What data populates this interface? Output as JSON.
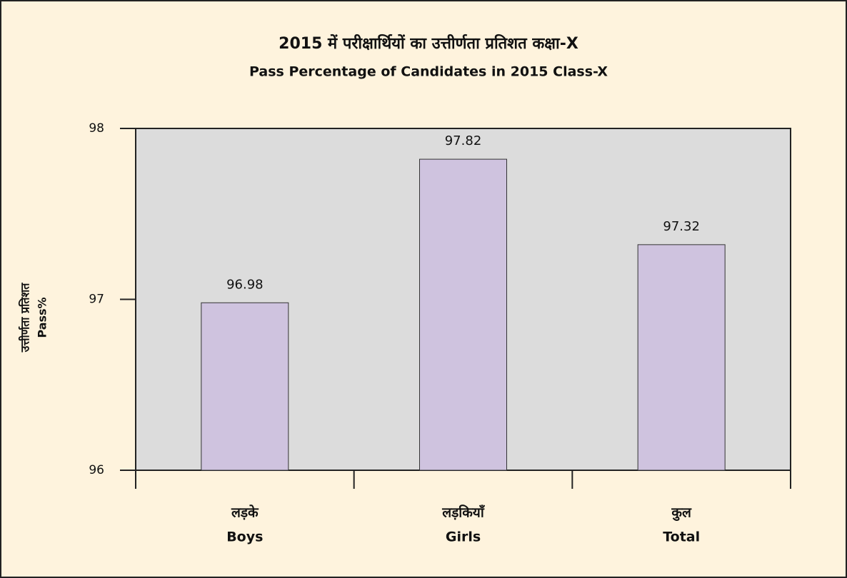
{
  "chart_data": {
    "type": "bar",
    "title": "2015 में परीक्षार्थियों का उत्तीर्णता प्रतिशत कक्षा-X",
    "subtitle": "Pass  Percentage of Candidates in 2015 Class-X",
    "ylabel": [
      "उत्तीर्णता प्रतिशत",
      "Pass%"
    ],
    "categories": [
      [
        "लड़के",
        "Boys"
      ],
      [
        "लड़कियाँ",
        "Girls"
      ],
      [
        "कुल",
        "Total"
      ]
    ],
    "values": [
      96.98,
      97.82,
      97.32
    ],
    "color": "#cfc3df",
    "ylim": [
      96,
      98
    ],
    "yticks": [
      96,
      97,
      98
    ],
    "grid": false
  }
}
